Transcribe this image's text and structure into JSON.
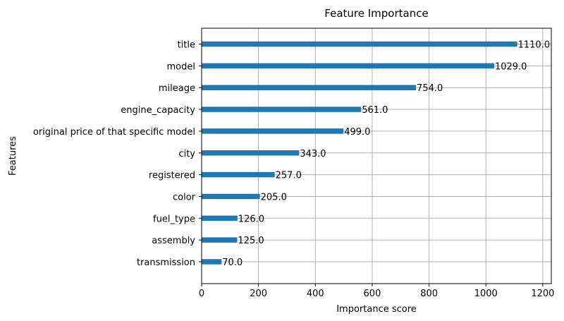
{
  "chart_data": {
    "type": "bar",
    "orientation": "horizontal",
    "title": "Feature Importance",
    "xlabel": "Importance score",
    "ylabel": "Features",
    "categories": [
      "title",
      "model",
      "mileage",
      "engine_capacity",
      "original price of that specific model",
      "city",
      "registered",
      "color",
      "fuel_type",
      "assembly",
      "transmission"
    ],
    "values": [
      1110,
      1029,
      754,
      561,
      499,
      343,
      257,
      205,
      126,
      125,
      70
    ],
    "value_labels": [
      "1110.0",
      "1029.0",
      "754.0",
      "561.0",
      "499.0",
      "343.0",
      "257.0",
      "205.0",
      "126.0",
      "125.0",
      "70.0"
    ],
    "xlim": [
      0,
      1230
    ],
    "xticks": [
      0,
      200,
      400,
      600,
      800,
      1000,
      1200
    ],
    "xtick_labels": [
      "0",
      "200",
      "400",
      "600",
      "800",
      "1000",
      "1200"
    ],
    "grid": true,
    "bar_color": "#1f77b4"
  }
}
